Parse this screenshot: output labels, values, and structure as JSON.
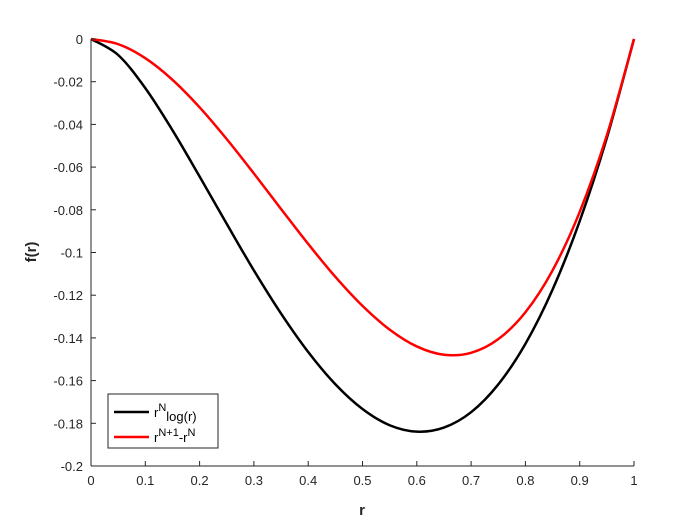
{
  "chart_data": {
    "type": "line",
    "title": "",
    "xlabel": "r",
    "ylabel": "f(r)",
    "xlim": [
      0,
      1
    ],
    "ylim": [
      -0.2,
      0
    ],
    "xticks": [
      "0",
      "0.1",
      "0.2",
      "0.3",
      "0.4",
      "0.5",
      "0.6",
      "0.7",
      "0.8",
      "0.9",
      "1"
    ],
    "yticks": [
      "0",
      "-0.02",
      "-0.04",
      "-0.06",
      "-0.08",
      "-0.1",
      "-0.12",
      "-0.14",
      "-0.16",
      "-0.18",
      "-0.2"
    ],
    "grid": false,
    "legend_position": "bottom-left",
    "x": [
      0,
      0.05,
      0.1,
      0.15,
      0.2,
      0.25,
      0.3,
      0.35,
      0.4,
      0.45,
      0.5,
      0.55,
      0.6,
      0.65,
      0.7,
      0.75,
      0.8,
      0.85,
      0.9,
      0.95,
      1
    ],
    "series": [
      {
        "legend": {
          "base": "r",
          "sup": "N",
          "sub": "log(r)"
        },
        "color": "#000000",
        "values": [
          0,
          -0.0075,
          -0.023,
          -0.0427,
          -0.0644,
          -0.0866,
          -0.1084,
          -0.1286,
          -0.1466,
          -0.1617,
          -0.1733,
          -0.1809,
          -0.1839,
          -0.182,
          -0.1748,
          -0.1618,
          -0.1428,
          -0.1174,
          -0.0853,
          -0.0463,
          0
        ]
      },
      {
        "legend": {
          "base": "r",
          "sup": "N+1",
          "tail": "-r",
          "sup2": "N"
        },
        "color": "#ff0000",
        "values": [
          0,
          -0.0024,
          -0.009,
          -0.0191,
          -0.032,
          -0.0469,
          -0.063,
          -0.0796,
          -0.096,
          -0.1114,
          -0.125,
          -0.1361,
          -0.144,
          -0.1479,
          -0.147,
          -0.1406,
          -0.128,
          -0.1084,
          -0.081,
          -0.0451,
          0
        ]
      }
    ]
  }
}
